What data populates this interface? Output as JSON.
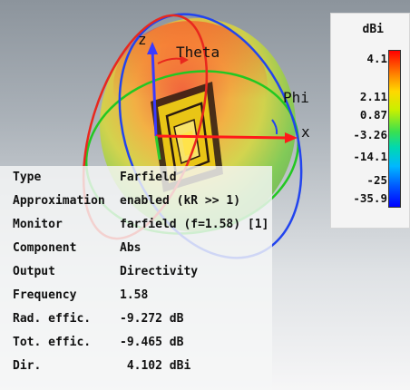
{
  "viewport": {
    "axes": {
      "z": "z",
      "x": "x",
      "theta": "Theta",
      "phi": "Phi"
    },
    "legend": {
      "unit": "dBi",
      "ticks": [
        "4.1",
        "2.11",
        "0.87",
        "-3.26",
        "-14.1",
        "-25",
        "-35.9"
      ]
    },
    "info": [
      {
        "key": "Type",
        "value": "Farfield"
      },
      {
        "key": "Approximation",
        "value": "enabled (kR >> 1)"
      },
      {
        "key": "Monitor",
        "value": "farfield (f=1.58) [1]"
      },
      {
        "key": "Component",
        "value": "Abs"
      },
      {
        "key": "Output",
        "value": "Directivity"
      },
      {
        "key": "Frequency",
        "value": "1.58"
      },
      {
        "key": "Rad. effic.",
        "value": "-9.272 dB"
      },
      {
        "key": "Tot. effic.",
        "value": "-9.465 dB"
      },
      {
        "key": "Dir.",
        "value": " 4.102 dBi"
      }
    ],
    "colors": {
      "pattern_top": "#ff6a2a",
      "pattern_mid": "#ffd02a",
      "pattern_low": "#6bd43c",
      "axis_x": "#ff1a1a",
      "axis_y": "#2ecc2e",
      "axis_z": "#3a3aff",
      "theta_circle": "#e8281e",
      "phi_circle": "#2244ee",
      "green_circle": "#22c822",
      "patch": "#f2d21a"
    }
  }
}
